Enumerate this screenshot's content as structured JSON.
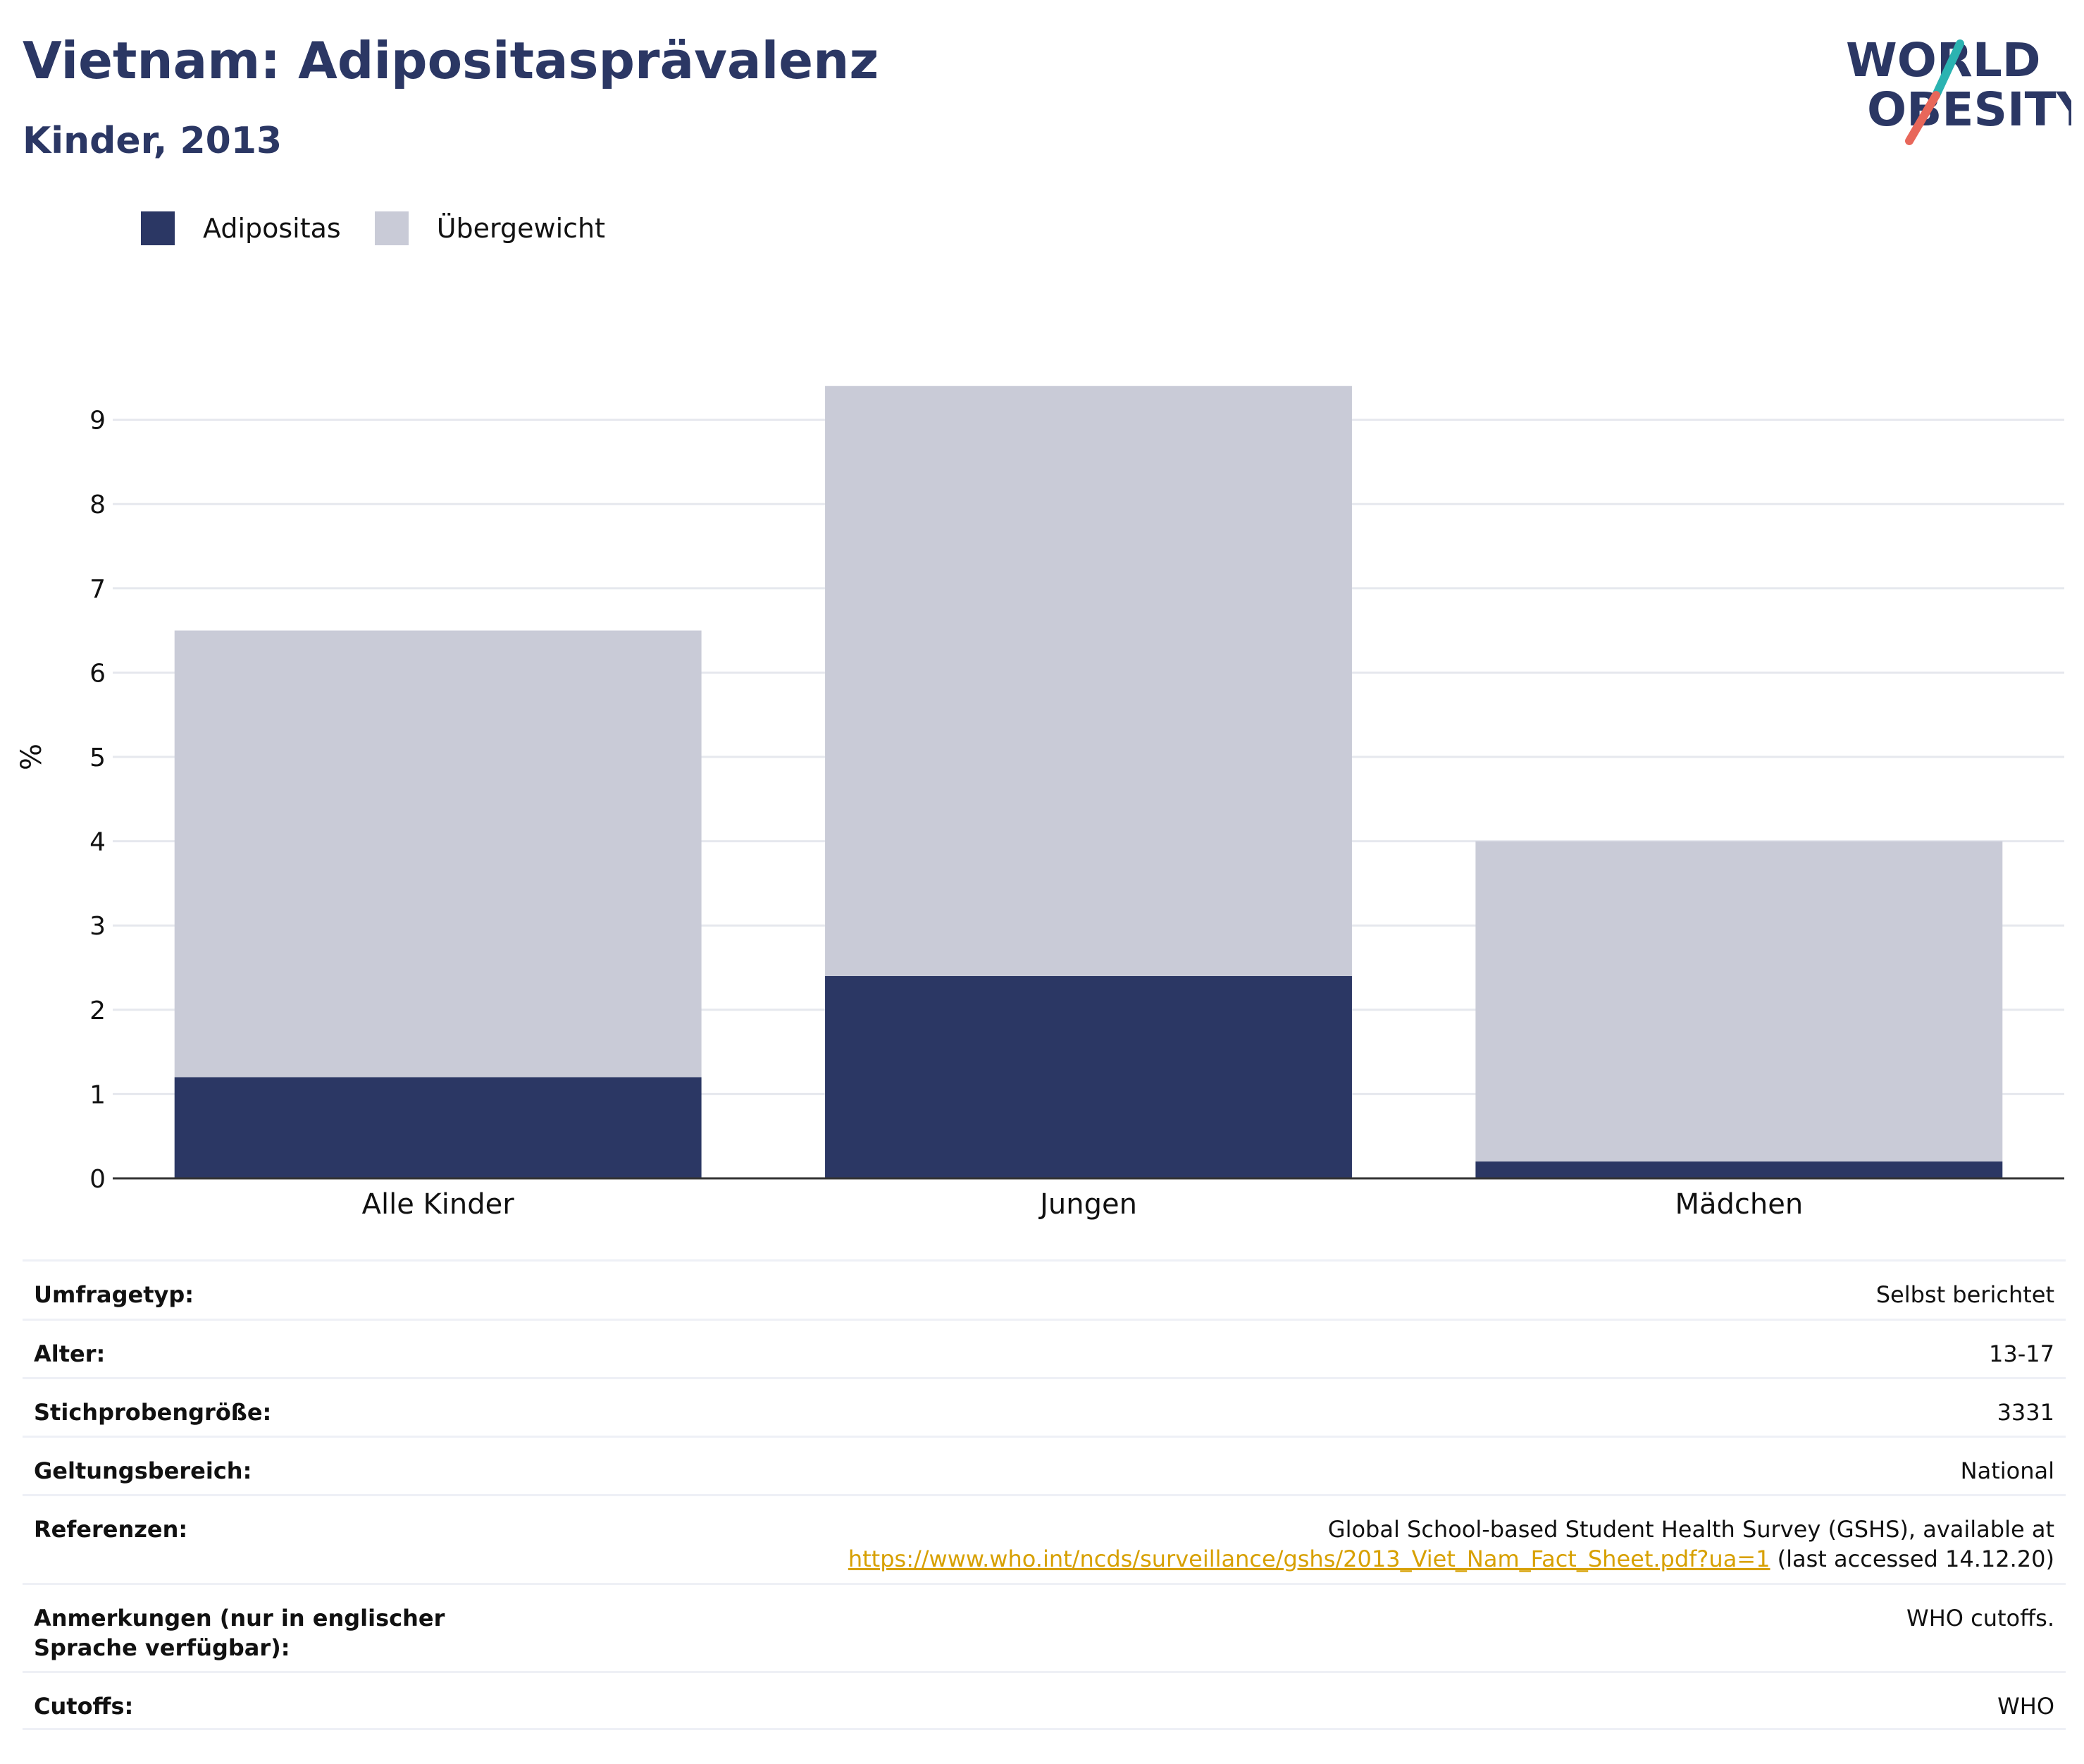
{
  "header": {
    "title": "Vietnam: Adipositasprävalenz",
    "subtitle": "Kinder, 2013"
  },
  "logo": {
    "line1": "WORLD",
    "line2": "OBESITY",
    "slash_color_top": "#2bb3b1",
    "slash_color_bottom": "#e8675a",
    "text_color": "#2b3764"
  },
  "colors": {
    "adipositas": "#2b3764",
    "uebergewicht": "#c9cbd7",
    "grid": "#e6e8ee",
    "axis": "#333333"
  },
  "legend": {
    "items": [
      {
        "label": "Adipositas",
        "color": "#2b3764"
      },
      {
        "label": "Übergewicht",
        "color": "#c9cbd7"
      }
    ]
  },
  "chart_data": {
    "type": "bar",
    "stacked": true,
    "categories": [
      "Alle Kinder",
      "Jungen",
      "Mädchen"
    ],
    "series": [
      {
        "name": "Adipositas",
        "values": [
          1.2,
          2.4,
          0.2
        ]
      },
      {
        "name": "Übergewicht",
        "values": [
          5.3,
          7.0,
          3.8
        ]
      }
    ],
    "title": "Vietnam: Adipositasprävalenz",
    "subtitle": "Kinder, 2013",
    "xlabel": "",
    "ylabel": "%",
    "ylim": [
      0,
      9.5
    ],
    "yticks": [
      0,
      1,
      2,
      3,
      4,
      5,
      6,
      7,
      8,
      9
    ],
    "grid": true,
    "legend_position": "top-left"
  },
  "info": {
    "rows": [
      {
        "key": "Umfragetyp:",
        "value": "Selbst berichtet"
      },
      {
        "key": "Alter:",
        "value": "13-17"
      },
      {
        "key": "Stichprobengröße:",
        "value": "3331"
      },
      {
        "key": "Geltungsbereich:",
        "value": "National"
      },
      {
        "key": "Referenzen:",
        "value": "Global School-based Student Health Survey (GSHS), available at",
        "link": "https://www.who.int/ncds/surveillance/gshs/2013_Viet_Nam_Fact_Sheet.pdf?ua=1",
        "suffix": " (last accessed 14.12.20)"
      },
      {
        "key": "Anmerkungen (nur in englischer Sprache verfügbar):",
        "value": "WHO cutoffs."
      },
      {
        "key": "Cutoffs:",
        "value": "WHO"
      }
    ]
  }
}
